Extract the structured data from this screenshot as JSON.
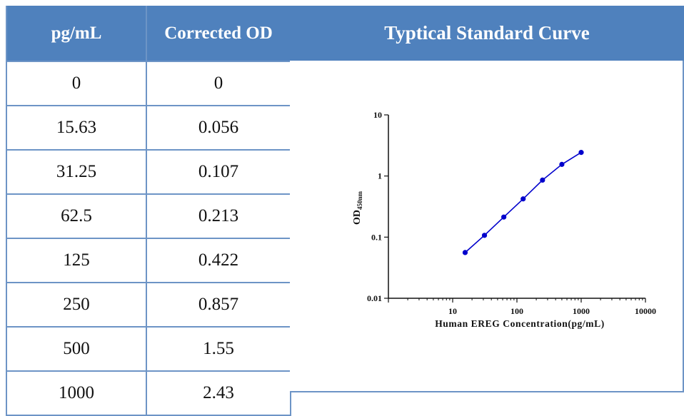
{
  "table": {
    "headers": [
      "pg/mL",
      "Corrected OD"
    ],
    "rows": [
      [
        "0",
        "0"
      ],
      [
        "15.63",
        "0.056"
      ],
      [
        "31.25",
        "0.107"
      ],
      [
        "62.5",
        "0.213"
      ],
      [
        "125",
        "0.422"
      ],
      [
        "250",
        "0.857"
      ],
      [
        "500",
        "1.55"
      ],
      [
        "1000",
        "2.43"
      ]
    ]
  },
  "colors": {
    "header_bg": "#4f81bd",
    "grid_line": "#6d94c6",
    "series": "#0000cc"
  },
  "chart_data": {
    "type": "line",
    "title": "Typtical Standard Curve",
    "xlabel": "Human EREG Concentration(pg/mL)",
    "ylabel": {
      "main": "OD",
      "subscript": "450nm"
    },
    "x_scale": "log",
    "y_scale": "log",
    "xlim": [
      1,
      10000
    ],
    "ylim": [
      0.01,
      10
    ],
    "x_ticks": [
      "10",
      "100",
      "1000",
      "10000"
    ],
    "y_ticks": [
      "0.01",
      "0.1",
      "1",
      "10"
    ],
    "grid": false,
    "series": [
      {
        "x": [
          15.63,
          31.25,
          62.5,
          125,
          250,
          500,
          1000
        ],
        "y": [
          0.056,
          0.107,
          0.213,
          0.422,
          0.857,
          1.55,
          2.43
        ]
      }
    ]
  }
}
